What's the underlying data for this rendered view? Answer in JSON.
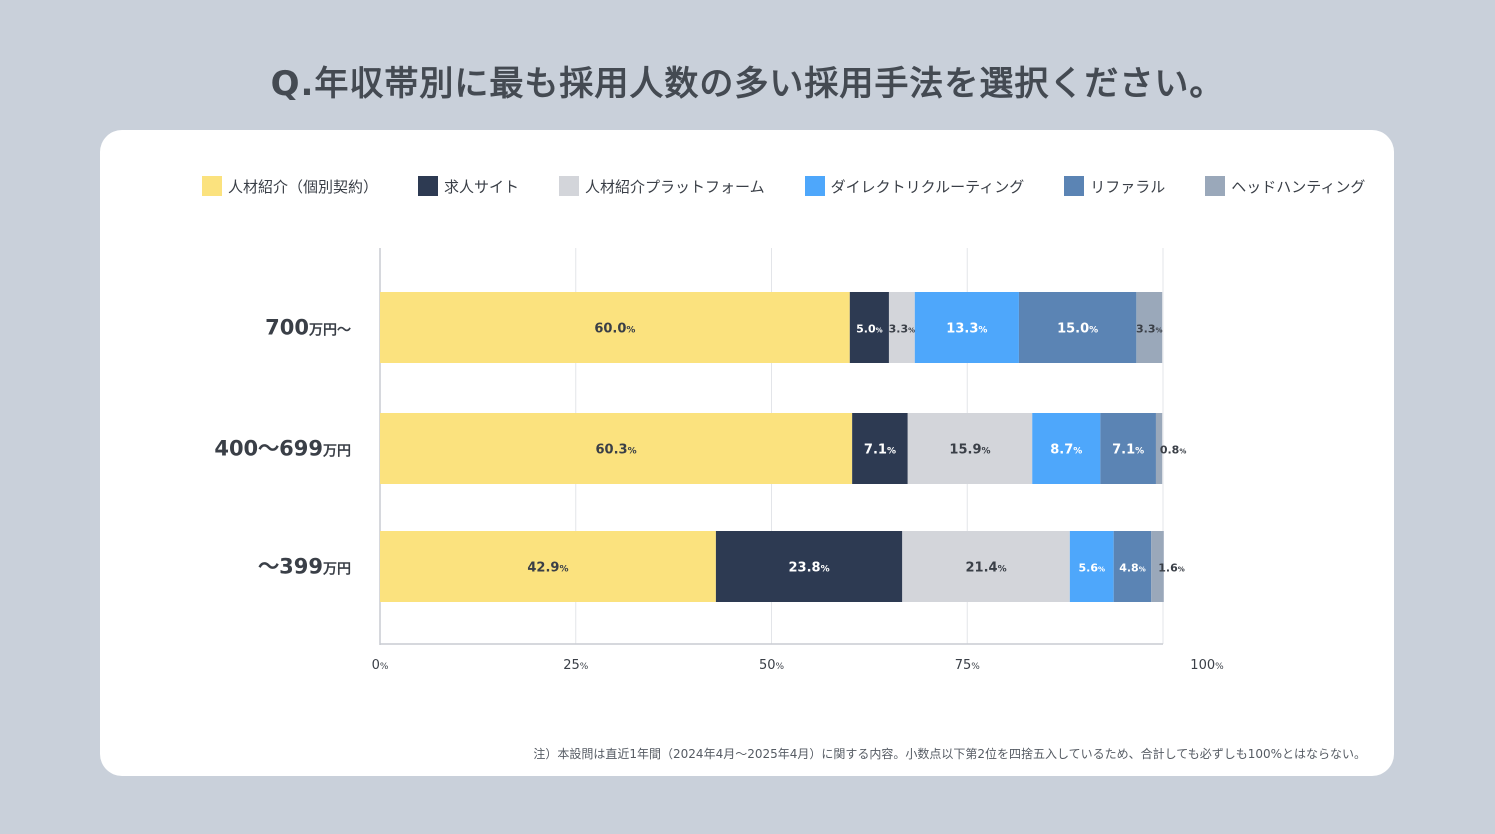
{
  "title": "Q.年収帯別に最も採用人数の多い採用手法を選択ください。",
  "note": "注）本設問は直近1年間（2024年4月～2025年4月）に関する内容。小数点以下第2位を四捨五入しているため、合計しても必ずしも100%とはならない。",
  "chart_data": {
    "type": "bar",
    "orientation": "horizontal",
    "stacked": true,
    "title": "Q.年収帯別に最も採用人数の多い採用手法を選択ください。",
    "categories": [
      "700万円～",
      "400～699万円",
      "～399万円"
    ],
    "category_labels": [
      {
        "main": "700",
        "sub": "万円～"
      },
      {
        "main": "400～699",
        "sub": "万円"
      },
      {
        "main": "～399",
        "sub": "万円"
      }
    ],
    "series": [
      {
        "name": "人材紹介（個別契約）",
        "color": "#fbe27e",
        "text_color": "#3a3f47",
        "values": [
          60.0,
          60.3,
          42.9
        ],
        "labels": [
          "60.0",
          "60.3",
          "42.9"
        ]
      },
      {
        "name": "求人サイト",
        "color": "#2d3a52",
        "text_color": "#ffffff",
        "values": [
          5.0,
          7.1,
          23.8
        ],
        "labels": [
          "5.0",
          "7.1",
          "23.8"
        ]
      },
      {
        "name": "人材紹介プラットフォーム",
        "color": "#d3d5da",
        "text_color": "#3a3f47",
        "values": [
          3.3,
          15.9,
          21.4
        ],
        "labels": [
          "3.3",
          "15.9",
          "21.4"
        ]
      },
      {
        "name": "ダイレクトリクルーティング",
        "color": "#4ea7fb",
        "text_color": "#ffffff",
        "values": [
          13.3,
          8.7,
          5.6
        ],
        "labels": [
          "13.3",
          "8.7",
          "5.6"
        ]
      },
      {
        "name": "リファラル",
        "color": "#5b84b4",
        "text_color": "#ffffff",
        "values": [
          15.0,
          7.1,
          4.8
        ],
        "labels": [
          "15.0",
          "7.1",
          "4.8"
        ]
      },
      {
        "name": "ヘッドハンティング",
        "color": "#9aa8ba",
        "text_color": "#3a3f47",
        "values": [
          3.3,
          0.8,
          1.6
        ],
        "labels": [
          "3.3",
          "0.8",
          "1.6"
        ]
      }
    ],
    "x_ticks": [
      "0",
      "25",
      "50",
      "75",
      "100"
    ],
    "x_tick_values": [
      0,
      25,
      50,
      75,
      100
    ],
    "unit": "%",
    "xlim": [
      0,
      100
    ],
    "grid": true,
    "legend_position": "top"
  }
}
